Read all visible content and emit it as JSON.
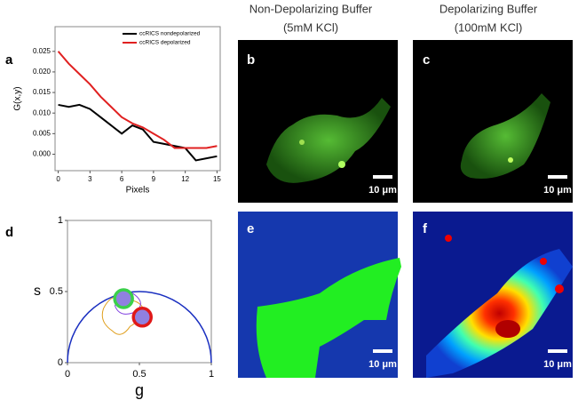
{
  "headers": [
    [
      "Non-Depolarizing Buffer",
      "(5mM KCl)"
    ],
    [
      "Depolarizing Buffer",
      "(100mM KCl)"
    ]
  ],
  "panel_labels": [
    "a",
    "b",
    "c",
    "d",
    "e",
    "f"
  ],
  "scale_bars": [
    "10 μm",
    "10 μm",
    "10 μm",
    "10 μm"
  ],
  "chart_data": [
    {
      "type": "line",
      "xlabel": "Pixels",
      "ylabel": "G(x,y)",
      "x": [
        0,
        1,
        2,
        3,
        4,
        5,
        6,
        7,
        8,
        9,
        10,
        11,
        12,
        13,
        14,
        15
      ],
      "series": [
        {
          "name": "ccRICS nondepolarized",
          "color": "#000000",
          "values": [
            0.012,
            0.0115,
            0.012,
            0.011,
            0.009,
            0.007,
            0.005,
            0.007,
            0.006,
            0.003,
            0.0025,
            0.002,
            0.0015,
            -0.0015,
            -0.001,
            -0.0005
          ]
        },
        {
          "name": "ccRICS depolarized",
          "color": "#e02020",
          "values": [
            0.025,
            0.022,
            0.0195,
            0.017,
            0.014,
            0.0115,
            0.009,
            0.0075,
            0.0065,
            0.005,
            0.0035,
            0.0015,
            0.0015,
            0.0015,
            0.0015,
            0.002
          ]
        }
      ],
      "xlim": [
        -0.3,
        15.3
      ],
      "ylim": [
        -0.004,
        0.031
      ],
      "xticks": [
        0,
        3,
        6,
        9,
        12,
        15
      ],
      "yticks": [
        {
          "value": 0,
          "label": "0.000"
        },
        {
          "value": 0.005,
          "label": "0.005"
        },
        {
          "value": 0.01,
          "label": "0.010"
        },
        {
          "value": 0.015,
          "label": "0.015"
        },
        {
          "value": 0.02,
          "label": "0.020"
        },
        {
          "value": 0.025,
          "label": "0.025"
        }
      ],
      "legend": "upper right"
    },
    {
      "type": "scatter",
      "xlabel": "g",
      "ylabel": "s",
      "series": [
        {
          "color": "#3ad04a",
          "x": [
            0.39
          ],
          "values": [
            0.45
          ]
        },
        {
          "color": "#e01818",
          "x": [
            0.52
          ],
          "values": [
            0.32
          ]
        }
      ],
      "xlim": [
        0,
        1
      ],
      "ylim": [
        0,
        1
      ],
      "xticks": [
        0,
        0.5,
        1
      ],
      "yticks": [
        0,
        0.5,
        1
      ]
    }
  ]
}
